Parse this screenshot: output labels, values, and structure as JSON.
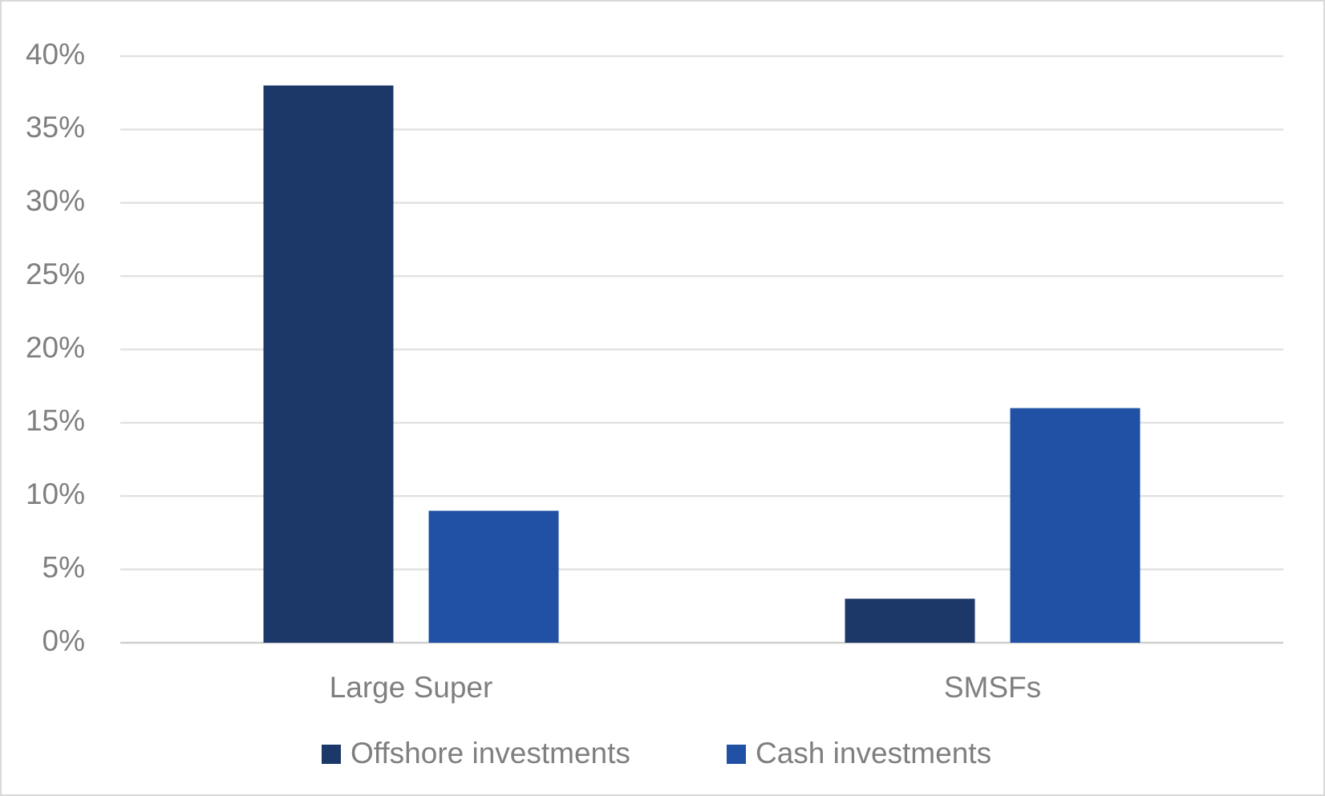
{
  "chart_data": {
    "type": "bar",
    "categories": [
      "Large Super",
      "SMSFs"
    ],
    "series": [
      {
        "name": "Offshore investments",
        "color": "#1c3868",
        "values": [
          38,
          3
        ]
      },
      {
        "name": "Cash investments",
        "color": "#2151a5",
        "values": [
          9,
          16
        ]
      }
    ],
    "ylim": [
      0,
      40
    ],
    "yticks": [
      {
        "value": 0,
        "label": "0%"
      },
      {
        "value": 5,
        "label": "5%"
      },
      {
        "value": 10,
        "label": "10%"
      },
      {
        "value": 15,
        "label": "15%"
      },
      {
        "value": 20,
        "label": "20%"
      },
      {
        "value": 25,
        "label": "25%"
      },
      {
        "value": 30,
        "label": "30%"
      },
      {
        "value": 35,
        "label": "35%"
      },
      {
        "value": 40,
        "label": "40%"
      }
    ],
    "grid": true,
    "legend": "bottom"
  }
}
